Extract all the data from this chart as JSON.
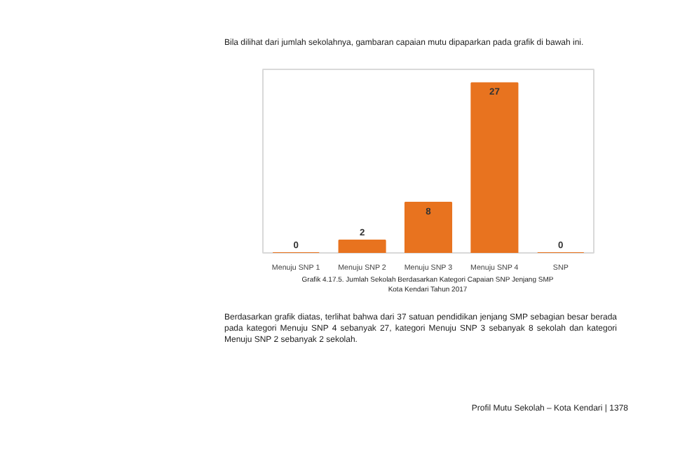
{
  "chart_data": {
    "type": "bar",
    "categories": [
      "Menuju SNP 1",
      "Menuju SNP 2",
      "Menuju SNP 3",
      "Menuju SNP 4",
      "SNP"
    ],
    "values": [
      0,
      2,
      8,
      27,
      0
    ],
    "color": "#e8731f",
    "data_labels": true,
    "grid": false,
    "subtitle": "Bila dilihat dari jumlah sekolahnya, gambaran capaian mutu dipaparkan pada grafik di bawah ini.",
    "title": "Grafik 4.17.5. Jumlah Sekolah Berdasarkan Kategori Capaian SNP Jenjang SMP\nKota Kendari Tahun 2017",
    "annotations": [
      "Berdasarkan grafik diatas, terlihat bahwa dari 37 satuan pendidikan jenjang SMP sebagian besar berada pada kategori Menuju SNP 4 sebanyak 27, kategori Menuju SNP 3 sebanyak 8 sekolah dan kategori Menuju SNP 2 sebanyak 2 sekolah.",
      "Profil Mutu Sekolah – Kota Kendari | 1378"
    ]
  }
}
